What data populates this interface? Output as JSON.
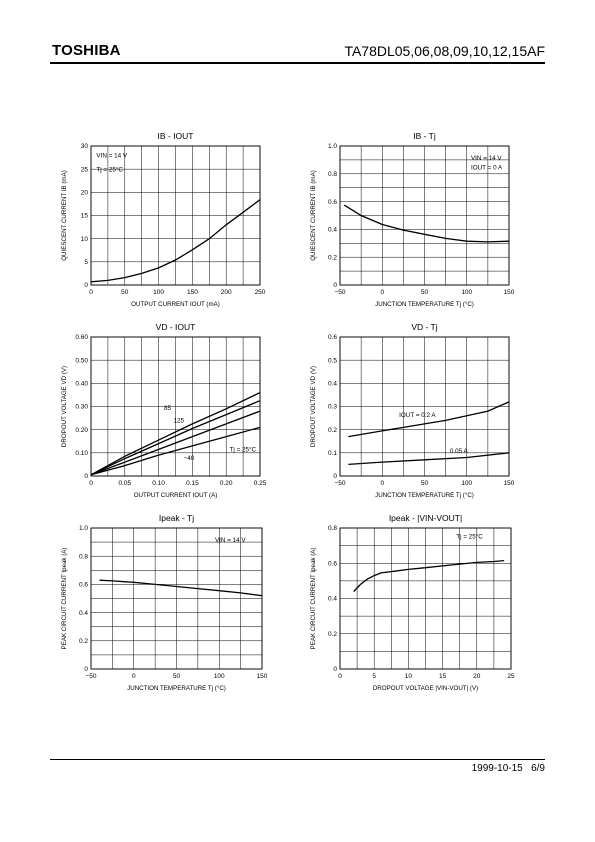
{
  "header": {
    "brand": "TOSHIBA",
    "part_number": "TA78DL05,06,08,09,10,12,15AF"
  },
  "footer": {
    "date": "1999-10-15",
    "page": "6/9"
  },
  "chart_data": [
    {
      "id": "ib-iout",
      "type": "line",
      "title": "IB - IOUT",
      "xlabel": "OUTPUT CURRENT IOUT (mA)",
      "ylabel": "QUIESCENT CURRENT IB (mA)",
      "xlim": [
        0,
        250
      ],
      "ylim": [
        0,
        30
      ],
      "xticks": [
        0,
        50,
        100,
        150,
        200,
        250
      ],
      "yticks": [
        0,
        5,
        10,
        15,
        20,
        25,
        30
      ],
      "conditions": [
        "VIN = 14 V",
        "Tj = 25°C"
      ],
      "series": [
        {
          "x": [
            0,
            25,
            50,
            75,
            100,
            125,
            150,
            175,
            200,
            225,
            250
          ],
          "y": [
            0.7,
            1.0,
            1.6,
            2.5,
            3.7,
            5.4,
            7.6,
            10.0,
            13.0,
            15.7,
            18.4
          ]
        }
      ]
    },
    {
      "id": "ib-tj",
      "type": "line",
      "title": "IB - Tj",
      "xlabel": "JUNCTION TEMPERATURE Tj (°C)",
      "ylabel": "QUIESCENT CURRENT IB (mA)",
      "xlim": [
        -50,
        150
      ],
      "ylim": [
        0,
        1.0
      ],
      "xticks": [
        -50,
        0,
        50,
        100,
        150
      ],
      "yticks": [
        0,
        0.2,
        0.4,
        0.6,
        0.8,
        1.0
      ],
      "conditions": [
        "VIN = 14 V",
        "IOUT = 0 A"
      ],
      "series": [
        {
          "x": [
            -45,
            -25,
            0,
            25,
            50,
            75,
            100,
            125,
            150
          ],
          "y": [
            0.575,
            0.5,
            0.435,
            0.395,
            0.365,
            0.335,
            0.315,
            0.31,
            0.315
          ]
        }
      ]
    },
    {
      "id": "vd-iout",
      "type": "line",
      "title": "VD - IOUT",
      "xlabel": "OUTPUT CURRENT IOUT (A)",
      "ylabel": "DROPOUT VOLTAGE VD (V)",
      "xlim": [
        0,
        0.25
      ],
      "ylim": [
        0,
        0.6
      ],
      "xticks": [
        0,
        0.05,
        0.1,
        0.15,
        0.2,
        0.25
      ],
      "yticks": [
        0,
        0.1,
        0.2,
        0.3,
        0.4,
        0.5,
        0.6
      ],
      "conditions": [],
      "series": [
        {
          "name": "85",
          "x": [
            0,
            0.05,
            0.1,
            0.15,
            0.2,
            0.25
          ],
          "y": [
            0.005,
            0.085,
            0.155,
            0.225,
            0.29,
            0.36
          ]
        },
        {
          "name": "125",
          "x": [
            0,
            0.05,
            0.1,
            0.15,
            0.2,
            0.25
          ],
          "y": [
            0.005,
            0.075,
            0.14,
            0.205,
            0.265,
            0.325
          ]
        },
        {
          "name": "Tj = 25°C",
          "x": [
            0,
            0.05,
            0.1,
            0.15,
            0.2,
            0.25
          ],
          "y": [
            0.005,
            0.06,
            0.115,
            0.17,
            0.225,
            0.28
          ]
        },
        {
          "name": "-40",
          "x": [
            0,
            0.05,
            0.1,
            0.15,
            0.2,
            0.25
          ],
          "y": [
            0.005,
            0.045,
            0.09,
            0.13,
            0.17,
            0.21
          ]
        }
      ]
    },
    {
      "id": "vd-tj",
      "type": "line",
      "title": "VD - Tj",
      "xlabel": "JUNCTION TEMPERATURE Tj (°C)",
      "ylabel": "DROPOUT VOLTAGE VD (V)",
      "xlim": [
        -50,
        150
      ],
      "ylim": [
        0,
        0.6
      ],
      "xticks": [
        -50,
        0,
        50,
        100,
        150
      ],
      "yticks": [
        0,
        0.1,
        0.2,
        0.3,
        0.4,
        0.5,
        0.6
      ],
      "conditions": [],
      "series": [
        {
          "name": "IOUT = 0.2 A",
          "x": [
            -40,
            0,
            25,
            50,
            75,
            100,
            125,
            150
          ],
          "y": [
            0.17,
            0.195,
            0.21,
            0.225,
            0.24,
            0.26,
            0.28,
            0.32
          ]
        },
        {
          "name": "0.05 A",
          "x": [
            -40,
            0,
            50,
            100,
            150
          ],
          "y": [
            0.05,
            0.06,
            0.07,
            0.08,
            0.1
          ]
        }
      ]
    },
    {
      "id": "ipeak-tj",
      "type": "line",
      "title": "Ipeak - Tj",
      "xlabel": "JUNCTION TEMPERATURE Tj (°C)",
      "ylabel": "PEAK CIRCUIT CURRENT Ipeak (A)",
      "xlim": [
        -50,
        150
      ],
      "ylim": [
        0,
        1.0
      ],
      "xticks": [
        -50,
        0,
        50,
        100,
        150
      ],
      "yticks": [
        0,
        0.2,
        0.4,
        0.6,
        0.8,
        1.0
      ],
      "conditions": [
        "VIN = 14 V"
      ],
      "series": [
        {
          "x": [
            -40,
            -25,
            0,
            25,
            50,
            75,
            100,
            125,
            150
          ],
          "y": [
            0.63,
            0.625,
            0.615,
            0.6,
            0.585,
            0.57,
            0.555,
            0.54,
            0.52
          ]
        }
      ]
    },
    {
      "id": "ipeak-vin",
      "type": "line",
      "title": "Ipeak - |VIN-VOUT|",
      "xlabel": "DROPOUT VOLTAGE |VIN-VOUT| (V)",
      "ylabel": "PEAK CIRCUIT CURRENT Ipeak (A)",
      "xlim": [
        0,
        25
      ],
      "ylim": [
        0,
        0.8
      ],
      "xticks": [
        0,
        5,
        10,
        15,
        20,
        25
      ],
      "yticks": [
        0,
        0.2,
        0.4,
        0.6,
        0.8
      ],
      "conditions": [
        "Tj = 25°C"
      ],
      "series": [
        {
          "x": [
            2,
            3,
            4,
            5,
            6,
            8,
            10,
            12.5,
            15,
            17.5,
            20,
            22.5,
            24
          ],
          "y": [
            0.44,
            0.48,
            0.51,
            0.53,
            0.545,
            0.555,
            0.565,
            0.575,
            0.585,
            0.595,
            0.605,
            0.61,
            0.615
          ]
        }
      ]
    }
  ]
}
